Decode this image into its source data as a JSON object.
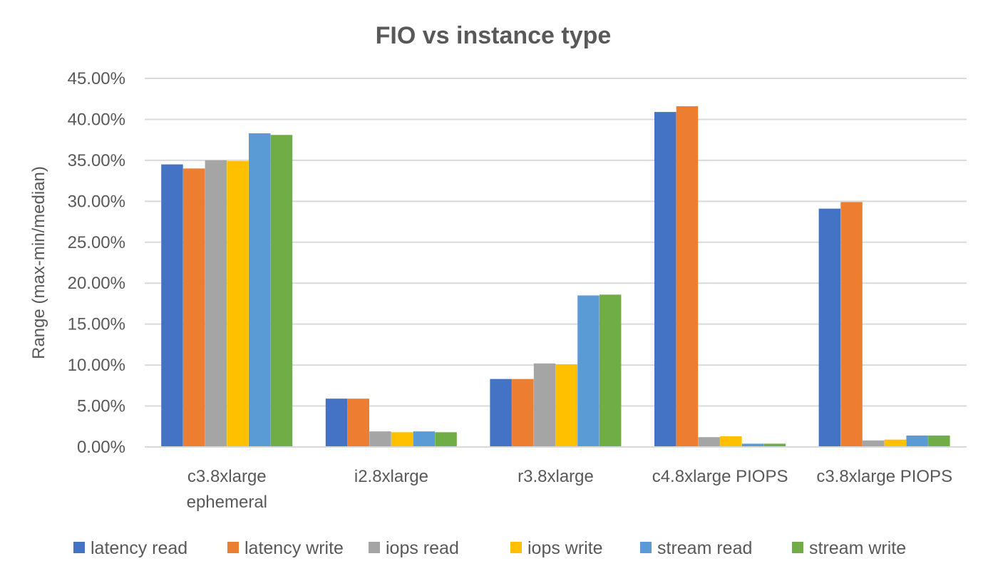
{
  "chart_data": {
    "type": "bar",
    "title": "FIO vs instance type",
    "xlabel": "",
    "ylabel": "Range (max-min/median)",
    "ylim": [
      0,
      0.45
    ],
    "y_ticks": [
      "0.00%",
      "5.00%",
      "10.00%",
      "15.00%",
      "20.00%",
      "25.00%",
      "30.00%",
      "35.00%",
      "40.00%",
      "45.00%"
    ],
    "y_tick_values": [
      0,
      0.05,
      0.1,
      0.15,
      0.2,
      0.25,
      0.3,
      0.35,
      0.4,
      0.45
    ],
    "grid": true,
    "legend_position": "bottom",
    "categories": [
      [
        "c3.8xlarge",
        "ephemeral"
      ],
      [
        "i2.8xlarge"
      ],
      [
        "r3.8xlarge"
      ],
      [
        "c4.8xlarge PIOPS"
      ],
      [
        "c3.8xlarge PIOPS"
      ]
    ],
    "series": [
      {
        "name": "latency read",
        "color": "#4472C4",
        "values": [
          0.345,
          0.059,
          0.083,
          0.409,
          0.291
        ]
      },
      {
        "name": "latency write",
        "color": "#ED7D31",
        "values": [
          0.34,
          0.059,
          0.083,
          0.416,
          0.299
        ]
      },
      {
        "name": "iops read",
        "color": "#A5A5A5",
        "values": [
          0.35,
          0.019,
          0.102,
          0.012,
          0.008
        ]
      },
      {
        "name": "iops write",
        "color": "#FFC000",
        "values": [
          0.349,
          0.018,
          0.101,
          0.013,
          0.009
        ]
      },
      {
        "name": "stream read",
        "color": "#5B9BD5",
        "values": [
          0.383,
          0.019,
          0.185,
          0.004,
          0.014
        ]
      },
      {
        "name": "stream write",
        "color": "#70AD47",
        "values": [
          0.381,
          0.018,
          0.186,
          0.004,
          0.014
        ]
      }
    ]
  }
}
